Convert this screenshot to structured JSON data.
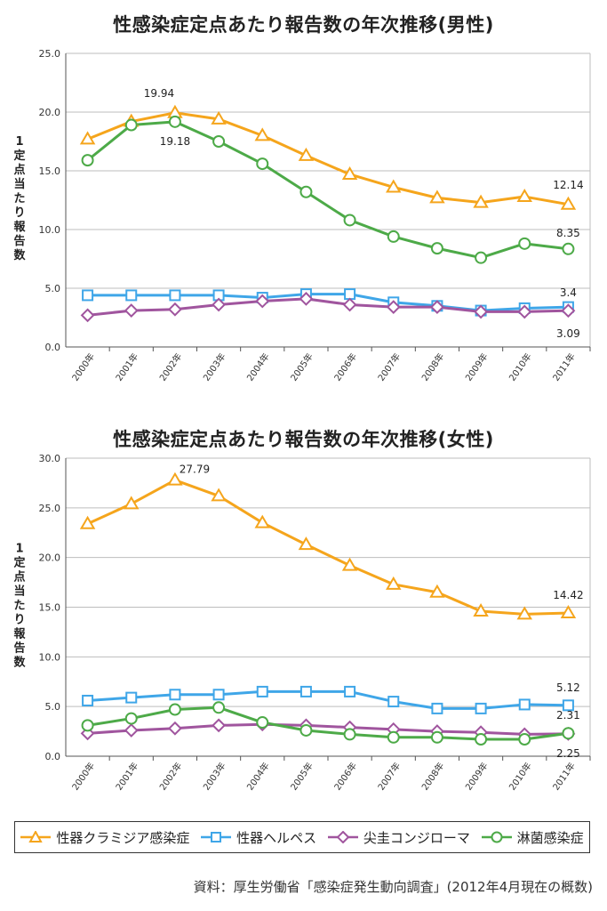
{
  "charts": [
    {
      "title": "性感染症定点あたり報告数の年次推移(男性)",
      "ylabel": "1定点当たり報告数",
      "ylim": [
        0,
        25
      ],
      "yticks": [
        "0.0",
        "5.0",
        "10.0",
        "15.0",
        "20.0",
        "25.0"
      ],
      "annotations": [
        "19.94",
        "19.18",
        "12.14",
        "8.35",
        "3.4",
        "3.09"
      ]
    },
    {
      "title": "性感染症定点あたり報告数の年次推移(女性)",
      "ylabel": "1定点当たり報告数",
      "ylim": [
        0,
        30
      ],
      "yticks": [
        "0.0",
        "5.0",
        "10.0",
        "15.0",
        "20.0",
        "25.0",
        "30.0"
      ],
      "annotations": [
        "27.79",
        "14.42",
        "5.12",
        "2.31",
        "2.25"
      ]
    }
  ],
  "legend": [
    "性器クラミジア感染症",
    "性器ヘルペス",
    "尖圭コンジローマ",
    "淋菌感染症"
  ],
  "series_colors": [
    "#f5a51c",
    "#3fa6e8",
    "#a0559e",
    "#4daa48"
  ],
  "markers": [
    "triangle",
    "square",
    "diamond",
    "circle"
  ],
  "source": "資料：厚生労働省「感染症発生動向調査」(2012年4月現在の概数)",
  "chart_data": [
    {
      "type": "line",
      "title": "性感染症定点あたり報告数の年次推移(男性)",
      "ylabel": "1定点当たり報告数",
      "ylim": [
        0,
        25
      ],
      "grid": true,
      "categories": [
        "2000年",
        "2001年",
        "2002年",
        "2003年",
        "2004年",
        "2005年",
        "2006年",
        "2007年",
        "2008年",
        "2009年",
        "2010年",
        "2011年"
      ],
      "series": [
        {
          "name": "性器クラミジア感染症",
          "values": [
            17.7,
            19.2,
            19.94,
            19.4,
            18.0,
            16.3,
            14.7,
            13.6,
            12.7,
            12.3,
            12.8,
            12.14
          ]
        },
        {
          "name": "性器ヘルペス",
          "values": [
            4.4,
            4.4,
            4.4,
            4.4,
            4.2,
            4.5,
            4.5,
            3.8,
            3.5,
            3.1,
            3.3,
            3.4
          ]
        },
        {
          "name": "尖圭コンジローマ",
          "values": [
            2.7,
            3.1,
            3.2,
            3.6,
            3.9,
            4.1,
            3.6,
            3.4,
            3.4,
            3.0,
            3.0,
            3.09
          ]
        },
        {
          "name": "淋菌感染症",
          "values": [
            15.9,
            18.9,
            19.18,
            17.5,
            15.6,
            13.2,
            10.8,
            9.4,
            8.4,
            7.6,
            8.8,
            8.35
          ]
        }
      ]
    },
    {
      "type": "line",
      "title": "性感染症定点あたり報告数の年次推移(女性)",
      "ylabel": "1定点当たり報告数",
      "ylim": [
        0,
        30
      ],
      "grid": true,
      "categories": [
        "2000年",
        "2001年",
        "2002年",
        "2003年",
        "2004年",
        "2005年",
        "2006年",
        "2007年",
        "2008年",
        "2009年",
        "2010年",
        "2011年"
      ],
      "series": [
        {
          "name": "性器クラミジア感染症",
          "values": [
            23.4,
            25.4,
            27.79,
            26.2,
            23.5,
            21.3,
            19.2,
            17.3,
            16.5,
            14.6,
            14.3,
            14.42
          ]
        },
        {
          "name": "性器ヘルペス",
          "values": [
            5.6,
            5.9,
            6.2,
            6.2,
            6.5,
            6.5,
            6.5,
            5.5,
            4.8,
            4.8,
            5.2,
            5.12
          ]
        },
        {
          "name": "尖圭コンジローマ",
          "values": [
            2.3,
            2.6,
            2.8,
            3.1,
            3.2,
            3.1,
            2.9,
            2.7,
            2.5,
            2.4,
            2.2,
            2.25
          ]
        },
        {
          "name": "淋菌感染症",
          "values": [
            3.1,
            3.8,
            4.7,
            4.9,
            3.4,
            2.6,
            2.2,
            1.9,
            1.9,
            1.7,
            1.7,
            2.31
          ]
        }
      ]
    }
  ]
}
